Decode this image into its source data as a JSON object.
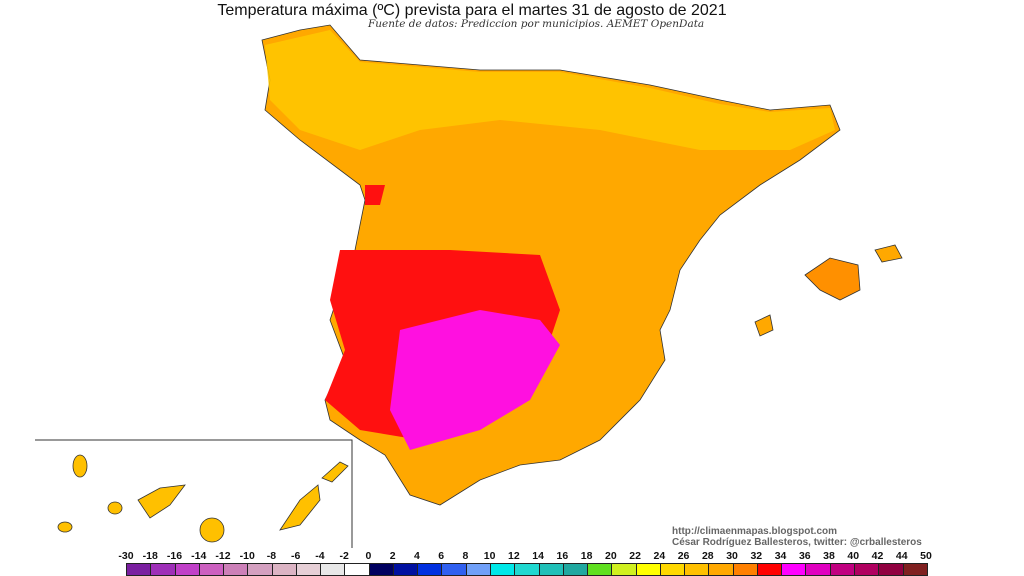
{
  "title": "Temperatura máxima (ºC) prevista para el martes 31 de agosto de 2021",
  "subtitle": "Fuente de datos: Prediccion por municipios. AEMET OpenData",
  "credits": [
    "http://climaenmapas.blogspot.com",
    "César Rodríguez Ballesteros, twitter: @crballesteros"
  ],
  "legend": {
    "ticks": [
      "-30",
      "-18",
      "-16",
      "-14",
      "-12",
      "-10",
      "-8",
      "-6",
      "-4",
      "-2",
      "0",
      "2",
      "4",
      "6",
      "8",
      "10",
      "12",
      "14",
      "16",
      "18",
      "20",
      "22",
      "24",
      "26",
      "28",
      "30",
      "32",
      "34",
      "36",
      "38",
      "40",
      "42",
      "44",
      "50"
    ],
    "colors": [
      "#7a1fa0",
      "#9e2fb8",
      "#c040c8",
      "#cc60c0",
      "#cc80b8",
      "#d4a0c0",
      "#dcb4c4",
      "#e6cfd6",
      "#e8e8e8",
      "#ffffff",
      "#000060",
      "#0010a0",
      "#0030e0",
      "#3060f0",
      "#70a0f8",
      "#00e8e8",
      "#20d8d0",
      "#20c0b8",
      "#20a8a0",
      "#60e020",
      "#d0f020",
      "#ffff00",
      "#ffd800",
      "#ffc000",
      "#ffa800",
      "#ff8000",
      "#ff0000",
      "#ff00ff",
      "#e000c0",
      "#c00080",
      "#b00060",
      "#900040",
      "#802020"
    ]
  },
  "map_colors": {
    "base": "#ffa800",
    "north": "#ffc800",
    "hot": "#ff1010",
    "hottest": "#ff10e0",
    "cool": "#60d040"
  }
}
